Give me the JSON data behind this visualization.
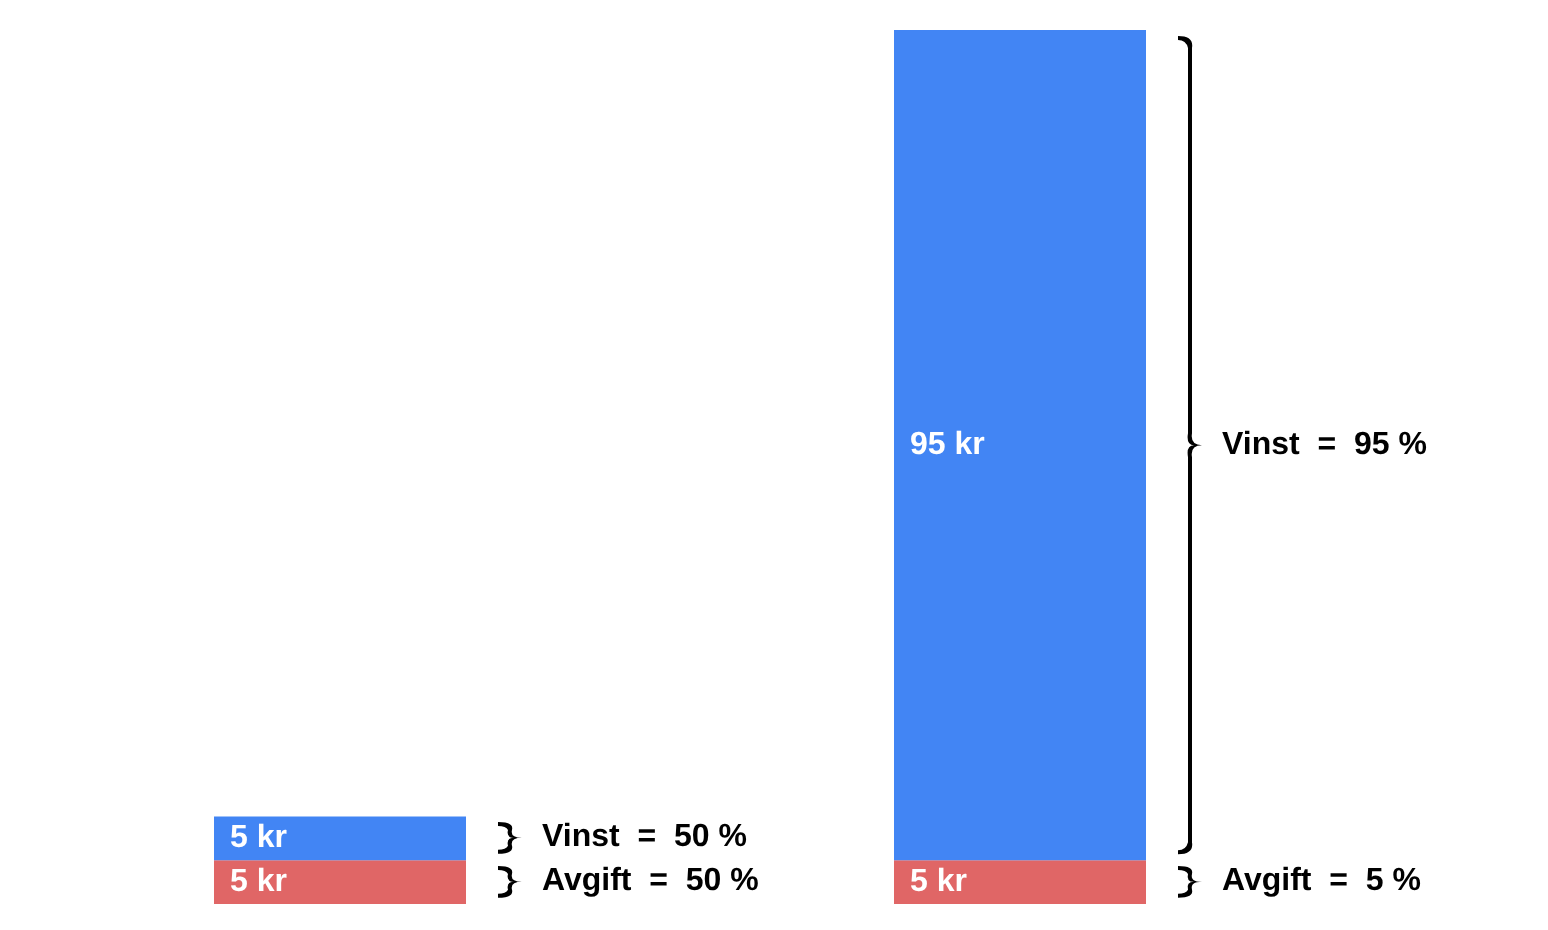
{
  "chart_data": {
    "type": "bar",
    "stacked": true,
    "categories": [
      null,
      null
    ],
    "series": [
      {
        "color": "#e06666",
        "values": [
          5,
          5
        ],
        "value_labels": [
          "5 kr",
          "5 kr"
        ]
      },
      {
        "color": "#4285f4",
        "values": [
          5,
          95
        ],
        "value_labels": [
          "5 kr",
          "95 kr"
        ]
      }
    ],
    "annotations": [
      "Vinst  =  50 %",
      "Avgift  =  50 %",
      "Vinst  =  95 %",
      "Avgift  =  5 %"
    ]
  }
}
